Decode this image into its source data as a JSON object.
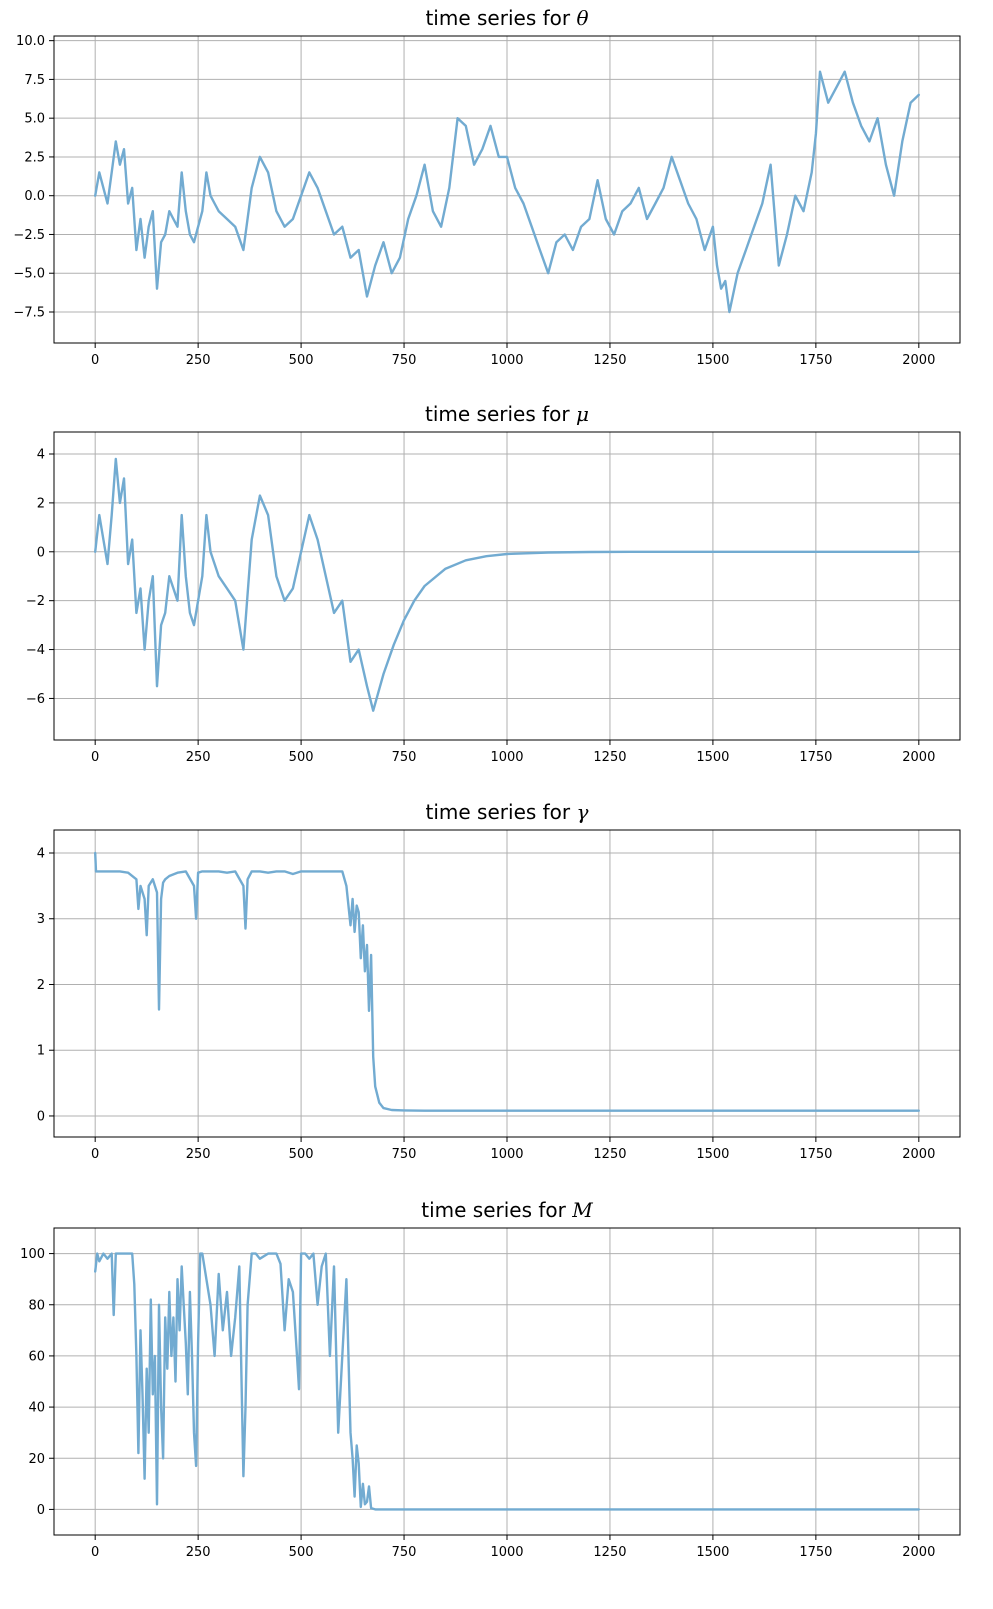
{
  "figure": {
    "title_prefix": "time series for",
    "colors": {
      "line": "#72abd1",
      "grid": "#b0b0b0",
      "axes": "#000000",
      "background": "#ffffff"
    }
  },
  "chart_data": [
    {
      "type": "line",
      "title": "time series for θ",
      "title_text": "time series for ",
      "title_var": "θ",
      "xlabel": "",
      "ylabel": "",
      "xlim": [
        -100,
        2100
      ],
      "ylim": [
        -9.5,
        10.3
      ],
      "xticks": [
        0,
        250,
        500,
        750,
        1000,
        1250,
        1500,
        1750,
        2000
      ],
      "xtick_labels": [
        "0",
        "250",
        "500",
        "750",
        "1000",
        "1250",
        "1500",
        "1750",
        "2000"
      ],
      "yticks": [
        10.0,
        7.5,
        5.0,
        2.5,
        0.0,
        -2.5,
        -5.0,
        -7.5
      ],
      "ytick_labels": [
        "10.0",
        "7.5",
        "5.0",
        "2.5",
        "0.0",
        "−2.5",
        "−5.0",
        "−7.5"
      ],
      "grid": true,
      "legend": "none",
      "series": [
        {
          "x": [
            0,
            10,
            20,
            30,
            40,
            50,
            60,
            70,
            80,
            90,
            100,
            110,
            120,
            130,
            140,
            150,
            160,
            170,
            180,
            190,
            200,
            210,
            220,
            230,
            240,
            250,
            260,
            270,
            280,
            290,
            300,
            320,
            340,
            360,
            380,
            400,
            420,
            440,
            460,
            480,
            500,
            520,
            540,
            560,
            580,
            600,
            620,
            640,
            660,
            680,
            700,
            720,
            740,
            760,
            780,
            800,
            820,
            840,
            860,
            880,
            900,
            920,
            940,
            960,
            980,
            1000,
            1020,
            1040,
            1060,
            1080,
            1100,
            1120,
            1140,
            1160,
            1180,
            1200,
            1220,
            1240,
            1260,
            1280,
            1300,
            1320,
            1340,
            1360,
            1380,
            1400,
            1420,
            1440,
            1460,
            1480,
            1500,
            1510,
            1520,
            1530,
            1540,
            1560,
            1580,
            1600,
            1620,
            1640,
            1660,
            1680,
            1700,
            1720,
            1740,
            1750,
            1760,
            1780,
            1800,
            1820,
            1840,
            1860,
            1880,
            1900,
            1920,
            1940,
            1960,
            1980,
            2000
          ],
          "y": [
            0.0,
            1.5,
            0.5,
            -0.5,
            1.5,
            3.5,
            2.0,
            3.0,
            -0.5,
            0.5,
            -3.5,
            -1.5,
            -4.0,
            -2.0,
            -1.0,
            -6.0,
            -3.0,
            -2.5,
            -1.0,
            -1.5,
            -2.0,
            1.5,
            -1.0,
            -2.5,
            -3.0,
            -2.0,
            -1.0,
            1.5,
            0.0,
            -0.5,
            -1.0,
            -1.5,
            -2.0,
            -3.5,
            0.5,
            2.5,
            1.5,
            -1.0,
            -2.0,
            -1.5,
            0.0,
            1.5,
            0.5,
            -1.0,
            -2.5,
            -2.0,
            -4.0,
            -3.5,
            -6.5,
            -4.5,
            -3.0,
            -5.0,
            -4.0,
            -1.5,
            0.0,
            2.0,
            -1.0,
            -2.0,
            0.5,
            5.0,
            4.5,
            2.0,
            3.0,
            4.5,
            2.5,
            2.5,
            0.5,
            -0.5,
            -2.0,
            -3.5,
            -5.0,
            -3.0,
            -2.5,
            -3.5,
            -2.0,
            -1.5,
            1.0,
            -1.5,
            -2.5,
            -1.0,
            -0.5,
            0.5,
            -1.5,
            -0.5,
            0.5,
            2.5,
            1.0,
            -0.5,
            -1.5,
            -3.5,
            -2.0,
            -4.5,
            -6.0,
            -5.5,
            -7.5,
            -5.0,
            -3.5,
            -2.0,
            -0.5,
            2.0,
            -4.5,
            -2.5,
            0.0,
            -1.0,
            1.5,
            4.0,
            8.0,
            6.0,
            7.0,
            8.0,
            6.0,
            4.5,
            3.5,
            5.0,
            2.0,
            0.0,
            3.5,
            6.0,
            6.5
          ]
        }
      ]
    },
    {
      "type": "line",
      "title": "time series for μ",
      "title_text": "time series for ",
      "title_var": "μ",
      "xlabel": "",
      "ylabel": "",
      "xlim": [
        -100,
        2100
      ],
      "ylim": [
        -7.7,
        4.9
      ],
      "xticks": [
        0,
        250,
        500,
        750,
        1000,
        1250,
        1500,
        1750,
        2000
      ],
      "xtick_labels": [
        "0",
        "250",
        "500",
        "750",
        "1000",
        "1250",
        "1500",
        "1750",
        "2000"
      ],
      "yticks": [
        4,
        2,
        0,
        -2,
        -4,
        -6
      ],
      "ytick_labels": [
        "4",
        "2",
        "0",
        "−2",
        "−4",
        "−6"
      ],
      "grid": true,
      "legend": "none",
      "series": [
        {
          "x": [
            0,
            10,
            20,
            30,
            40,
            50,
            60,
            70,
            80,
            90,
            100,
            110,
            120,
            130,
            140,
            150,
            160,
            170,
            180,
            190,
            200,
            210,
            220,
            230,
            240,
            250,
            260,
            270,
            280,
            290,
            300,
            320,
            340,
            360,
            380,
            400,
            420,
            440,
            460,
            480,
            500,
            520,
            540,
            560,
            580,
            600,
            620,
            640,
            660,
            675,
            700,
            725,
            750,
            775,
            800,
            850,
            900,
            950,
            1000,
            1100,
            1200,
            1300,
            1500,
            1750,
            2000
          ],
          "y": [
            0.0,
            1.5,
            0.5,
            -0.5,
            1.5,
            3.8,
            2.0,
            3.0,
            -0.5,
            0.5,
            -2.5,
            -1.5,
            -4.0,
            -2.0,
            -1.0,
            -5.5,
            -3.0,
            -2.5,
            -1.0,
            -1.5,
            -2.0,
            1.5,
            -1.0,
            -2.5,
            -3.0,
            -2.0,
            -1.0,
            1.5,
            0.0,
            -0.5,
            -1.0,
            -1.5,
            -2.0,
            -4.0,
            0.5,
            2.3,
            1.5,
            -1.0,
            -2.0,
            -1.5,
            0.0,
            1.5,
            0.5,
            -1.0,
            -2.5,
            -2.0,
            -4.5,
            -4.0,
            -5.5,
            -6.5,
            -5.0,
            -3.8,
            -2.8,
            -2.0,
            -1.4,
            -0.7,
            -0.35,
            -0.18,
            -0.09,
            -0.03,
            -0.01,
            0.0,
            0.0,
            0.0,
            0.0
          ]
        }
      ]
    },
    {
      "type": "line",
      "title": "time series for γ",
      "title_text": "time series for ",
      "title_var": "γ",
      "xlabel": "",
      "ylabel": "",
      "xlim": [
        -100,
        2100
      ],
      "ylim": [
        -0.32,
        4.35
      ],
      "xticks": [
        0,
        250,
        500,
        750,
        1000,
        1250,
        1500,
        1750,
        2000
      ],
      "xtick_labels": [
        "0",
        "250",
        "500",
        "750",
        "1000",
        "1250",
        "1500",
        "1750",
        "2000"
      ],
      "yticks": [
        4,
        3,
        2,
        1,
        0
      ],
      "ytick_labels": [
        "4",
        "3",
        "2",
        "1",
        "0"
      ],
      "grid": true,
      "legend": "none",
      "series": [
        {
          "x": [
            0,
            2,
            10,
            20,
            40,
            60,
            80,
            100,
            105,
            110,
            120,
            125,
            130,
            140,
            150,
            155,
            160,
            165,
            170,
            180,
            200,
            220,
            240,
            245,
            250,
            260,
            280,
            300,
            320,
            340,
            360,
            365,
            370,
            380,
            400,
            420,
            440,
            460,
            480,
            500,
            520,
            540,
            560,
            580,
            600,
            610,
            620,
            625,
            630,
            635,
            640,
            645,
            650,
            655,
            660,
            665,
            670,
            675,
            680,
            690,
            700,
            720,
            750,
            800,
            900,
            1000,
            1500,
            2000
          ],
          "y": [
            4.0,
            3.72,
            3.72,
            3.72,
            3.72,
            3.72,
            3.7,
            3.6,
            3.15,
            3.5,
            3.3,
            2.75,
            3.5,
            3.6,
            3.4,
            1.62,
            3.3,
            3.55,
            3.6,
            3.65,
            3.7,
            3.72,
            3.5,
            3.0,
            3.7,
            3.72,
            3.72,
            3.72,
            3.7,
            3.72,
            3.5,
            2.85,
            3.6,
            3.72,
            3.72,
            3.7,
            3.72,
            3.72,
            3.68,
            3.72,
            3.72,
            3.72,
            3.72,
            3.72,
            3.72,
            3.5,
            2.9,
            3.3,
            2.8,
            3.2,
            3.1,
            2.4,
            2.9,
            2.2,
            2.6,
            1.6,
            2.45,
            0.9,
            0.45,
            0.2,
            0.12,
            0.09,
            0.085,
            0.08,
            0.08,
            0.08,
            0.08,
            0.08
          ]
        }
      ]
    },
    {
      "type": "line",
      "title": "time series for M",
      "title_text": "time series for ",
      "title_var": "M",
      "xlabel": "",
      "ylabel": "",
      "xlim": [
        -100,
        2100
      ],
      "ylim": [
        -10,
        110
      ],
      "xticks": [
        0,
        250,
        500,
        750,
        1000,
        1250,
        1500,
        1750,
        2000
      ],
      "xtick_labels": [
        "0",
        "250",
        "500",
        "750",
        "1000",
        "1250",
        "1500",
        "1750",
        "2000"
      ],
      "yticks": [
        100,
        80,
        60,
        40,
        20,
        0
      ],
      "ytick_labels": [
        "100",
        "80",
        "60",
        "40",
        "20",
        "0"
      ],
      "grid": true,
      "legend": "none",
      "series": [
        {
          "x": [
            0,
            5,
            10,
            20,
            30,
            40,
            45,
            50,
            60,
            70,
            80,
            90,
            95,
            100,
            105,
            110,
            115,
            120,
            125,
            130,
            135,
            140,
            145,
            150,
            155,
            160,
            165,
            170,
            175,
            180,
            185,
            190,
            195,
            200,
            205,
            210,
            215,
            220,
            225,
            230,
            235,
            240,
            245,
            250,
            255,
            260,
            270,
            280,
            290,
            300,
            310,
            320,
            330,
            340,
            350,
            360,
            365,
            370,
            380,
            390,
            400,
            420,
            440,
            450,
            460,
            470,
            480,
            490,
            495,
            500,
            510,
            520,
            530,
            540,
            550,
            560,
            570,
            580,
            590,
            600,
            610,
            620,
            625,
            630,
            635,
            640,
            645,
            650,
            655,
            660,
            665,
            670,
            680,
            700,
            750,
            800,
            1000,
            1500,
            2000
          ],
          "y": [
            93,
            100,
            97,
            100,
            98,
            100,
            76,
            100,
            100,
            100,
            100,
            100,
            88,
            60,
            22,
            70,
            45,
            12,
            55,
            30,
            82,
            45,
            60,
            2,
            80,
            40,
            20,
            75,
            55,
            85,
            60,
            75,
            50,
            90,
            70,
            95,
            80,
            65,
            45,
            85,
            60,
            30,
            17,
            65,
            100,
            100,
            90,
            80,
            60,
            92,
            70,
            85,
            60,
            75,
            95,
            13,
            40,
            80,
            100,
            100,
            98,
            100,
            100,
            96,
            70,
            90,
            85,
            60,
            47,
            100,
            100,
            98,
            100,
            80,
            95,
            100,
            60,
            95,
            30,
            60,
            90,
            30,
            20,
            5,
            25,
            18,
            1,
            10,
            2,
            3,
            9,
            0.5,
            0,
            0,
            0,
            0,
            0,
            0,
            0
          ]
        }
      ]
    }
  ]
}
